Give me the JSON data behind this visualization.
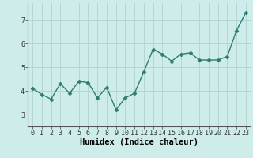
{
  "x": [
    0,
    1,
    2,
    3,
    4,
    5,
    6,
    7,
    8,
    9,
    10,
    11,
    12,
    13,
    14,
    15,
    16,
    17,
    18,
    19,
    20,
    21,
    22,
    23
  ],
  "y": [
    4.1,
    3.85,
    3.65,
    4.3,
    3.9,
    4.4,
    4.35,
    3.7,
    4.15,
    3.2,
    3.7,
    3.9,
    4.8,
    5.75,
    5.55,
    5.25,
    5.55,
    5.6,
    5.3,
    5.3,
    5.3,
    5.45,
    6.55,
    7.3
  ],
  "line_color": "#2e7d6e",
  "marker": "D",
  "marker_size": 2.5,
  "line_width": 1.0,
  "bg_color": "#ceecea",
  "grid_color": "#b0d4d0",
  "xlabel": "Humidex (Indice chaleur)",
  "xlabel_fontsize": 7.5,
  "tick_fontsize": 6,
  "xlim": [
    -0.5,
    23.5
  ],
  "ylim": [
    2.5,
    7.7
  ],
  "yticks": [
    3,
    4,
    5,
    6,
    7
  ],
  "xticks": [
    0,
    1,
    2,
    3,
    4,
    5,
    6,
    7,
    8,
    9,
    10,
    11,
    12,
    13,
    14,
    15,
    16,
    17,
    18,
    19,
    20,
    21,
    22,
    23
  ]
}
